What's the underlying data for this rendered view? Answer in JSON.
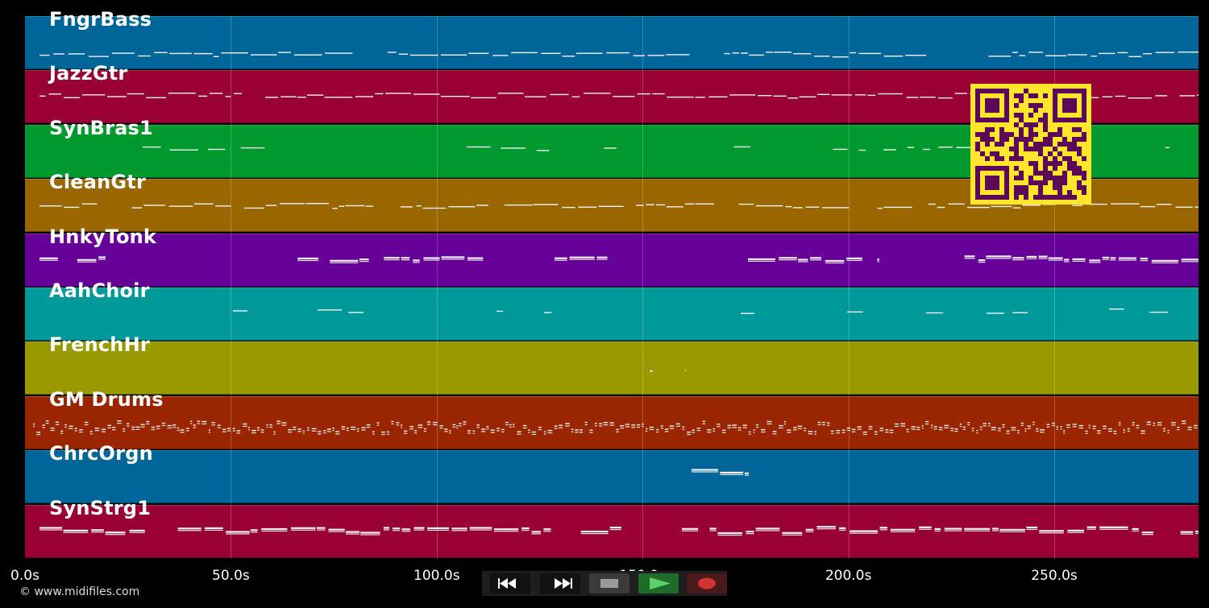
{
  "timeline": {
    "tick_labels": [
      "0.0s",
      "50.0s",
      "100.0s",
      "150.0s",
      "200.0s",
      "250.0s"
    ],
    "tick_seconds": [
      0,
      50,
      100,
      150,
      200,
      250
    ],
    "visible_end_seconds": 285
  },
  "tracks": [
    {
      "name": "FngrBass",
      "color": "#00669a"
    },
    {
      "name": "JazzGtr",
      "color": "#990033"
    },
    {
      "name": "SynBras1",
      "color": "#00992e"
    },
    {
      "name": "CleanGtr",
      "color": "#996600"
    },
    {
      "name": "HnkyTonk",
      "color": "#660099"
    },
    {
      "name": "AahChoir",
      "color": "#00999a"
    },
    {
      "name": "FrenchHr",
      "color": "#999900"
    },
    {
      "name": "GM Drums",
      "color": "#992600"
    },
    {
      "name": "ChrcOrgn",
      "color": "#00669a"
    },
    {
      "name": "SynStrg1",
      "color": "#990033"
    }
  ],
  "transport": {
    "rewind_icon": "rewind-icon",
    "fast_forward_icon": "fast-forward-icon",
    "stop_icon": "stop-icon",
    "play_icon": "play-icon",
    "record_icon": "record-icon"
  },
  "copyright": "© www.midifiles.com",
  "qr_code": {
    "fg": "#5c0a57",
    "bg": "#ffe52e"
  }
}
